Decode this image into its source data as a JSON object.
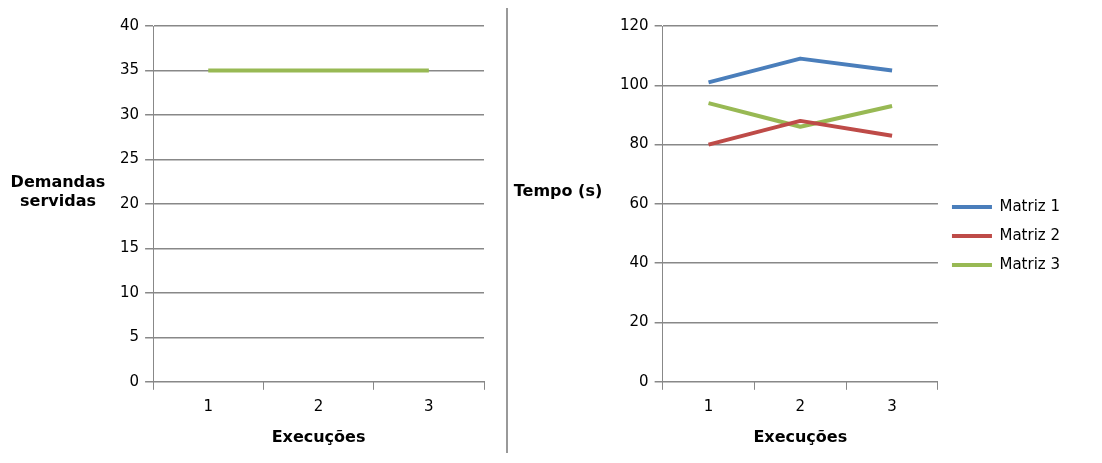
{
  "chart_data": [
    {
      "type": "line",
      "xlabel": "Execuções",
      "ylabel": "Demandas servidas",
      "categories": [
        "1",
        "2",
        "3"
      ],
      "series": [
        {
          "color": "#98b954",
          "values": [
            35,
            35,
            35
          ]
        }
      ],
      "ylim": [
        0,
        40
      ],
      "yticks": [
        0,
        5,
        10,
        15,
        20,
        25,
        30,
        35,
        40
      ],
      "grid": "y",
      "legend": false,
      "marker": "none",
      "line_style": "solid"
    },
    {
      "type": "line",
      "xlabel": "Execuções",
      "ylabel": "Tempo (s)",
      "categories": [
        "1",
        "2",
        "3"
      ],
      "series": [
        {
          "name": "Matriz 1",
          "color": "#4a7ebb",
          "values": [
            101,
            109,
            105
          ]
        },
        {
          "name": "Matriz 2",
          "color": "#be4b48",
          "values": [
            80,
            88,
            83
          ]
        },
        {
          "name": "Matriz 3",
          "color": "#98b954",
          "values": [
            94,
            86,
            93
          ]
        }
      ],
      "ylim": [
        0,
        120
      ],
      "yticks": [
        0,
        20,
        40,
        60,
        80,
        100,
        120
      ],
      "grid": "y",
      "legend": "right",
      "marker": "none",
      "line_style": "solid"
    }
  ]
}
